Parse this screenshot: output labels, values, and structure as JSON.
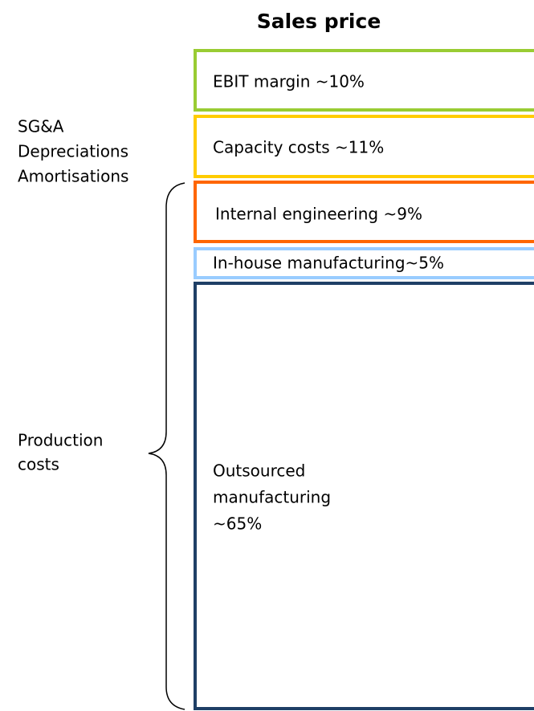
{
  "title": "Sales price",
  "left_labels": [
    "SG&A",
    "Depreciations",
    "Amortisations"
  ],
  "brace_label": [
    "Production",
    "costs"
  ],
  "boxes": [
    {
      "label": "EBIT margin ~10%"
    },
    {
      "label": "Capacity costs ~11%"
    },
    {
      "label": "Internal engineering ~9%"
    },
    {
      "label": "In-house manufacturing~5%"
    },
    {
      "label": [
        "Outsourced",
        "manufacturing",
        "~65%"
      ]
    }
  ]
}
